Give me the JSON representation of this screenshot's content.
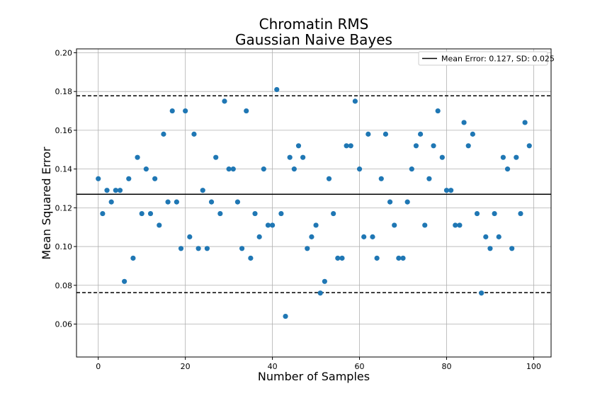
{
  "chart_data": {
    "type": "scatter",
    "title": [
      "Chromatin RMS",
      "Gaussian Naive Bayes"
    ],
    "xlabel": "Number of Samples",
    "ylabel": "Mean Squared Error",
    "xlim": [
      -5,
      104
    ],
    "ylim": [
      0.043,
      0.202
    ],
    "xticks": [
      0,
      20,
      40,
      60,
      80,
      100
    ],
    "yticks": [
      0.06,
      0.08,
      0.1,
      0.12,
      0.14,
      0.16,
      0.18,
      0.2
    ],
    "ytick_labels": [
      "0.06",
      "0.08",
      "0.10",
      "0.12",
      "0.14",
      "0.16",
      "0.18",
      "0.20"
    ],
    "xtick_labels": [
      "0",
      "20",
      "40",
      "60",
      "80",
      "100"
    ],
    "grid": true,
    "legend_position": "top-right",
    "legend_label": "Mean Error: 0.127, SD: 0.025",
    "mean_line": 0.127,
    "sd_lines": [
      0.0762,
      0.1778
    ],
    "point_color": "#1f77b4",
    "x": [
      0,
      1,
      2,
      3,
      4,
      5,
      6,
      7,
      8,
      9,
      10,
      11,
      12,
      13,
      14,
      15,
      16,
      17,
      18,
      19,
      20,
      21,
      22,
      23,
      24,
      25,
      26,
      27,
      28,
      29,
      30,
      31,
      32,
      33,
      34,
      35,
      36,
      37,
      38,
      39,
      40,
      41,
      42,
      43,
      44,
      45,
      46,
      47,
      48,
      49,
      50,
      51,
      52,
      53,
      54,
      55,
      56,
      57,
      58,
      59,
      60,
      61,
      62,
      63,
      64,
      65,
      66,
      67,
      68,
      69,
      70,
      71,
      72,
      73,
      74,
      75,
      76,
      77,
      78,
      79,
      80,
      81,
      82,
      83,
      84,
      85,
      86,
      87,
      88,
      89,
      90,
      91,
      92,
      93,
      94,
      95,
      96,
      97,
      98,
      99
    ],
    "y": [
      0.135,
      0.117,
      0.129,
      0.123,
      0.129,
      0.129,
      0.082,
      0.135,
      0.094,
      0.146,
      0.117,
      0.14,
      0.117,
      0.135,
      0.111,
      0.158,
      0.123,
      0.17,
      0.123,
      0.099,
      0.17,
      0.105,
      0.158,
      0.099,
      0.129,
      0.099,
      0.123,
      0.146,
      0.117,
      0.175,
      0.14,
      0.14,
      0.123,
      0.099,
      0.17,
      0.094,
      0.117,
      0.105,
      0.14,
      0.111,
      0.111,
      0.181,
      0.117,
      0.064,
      0.146,
      0.14,
      0.152,
      0.146,
      0.099,
      0.105,
      0.111,
      0.076,
      0.082,
      0.135,
      0.117,
      0.094,
      0.094,
      0.152,
      0.152,
      0.175,
      0.14,
      0.105,
      0.158,
      0.105,
      0.094,
      0.135,
      0.158,
      0.123,
      0.111,
      0.094,
      0.094,
      0.123,
      0.14,
      0.152,
      0.158,
      0.111,
      0.135,
      0.152,
      0.17,
      0.146,
      0.129,
      0.129,
      0.111,
      0.111,
      0.164,
      0.152,
      0.158,
      0.117,
      0.076,
      0.105,
      0.099,
      0.117,
      0.105,
      0.146,
      0.14,
      0.099,
      0.146,
      0.117,
      0.164,
      0.152
    ]
  }
}
